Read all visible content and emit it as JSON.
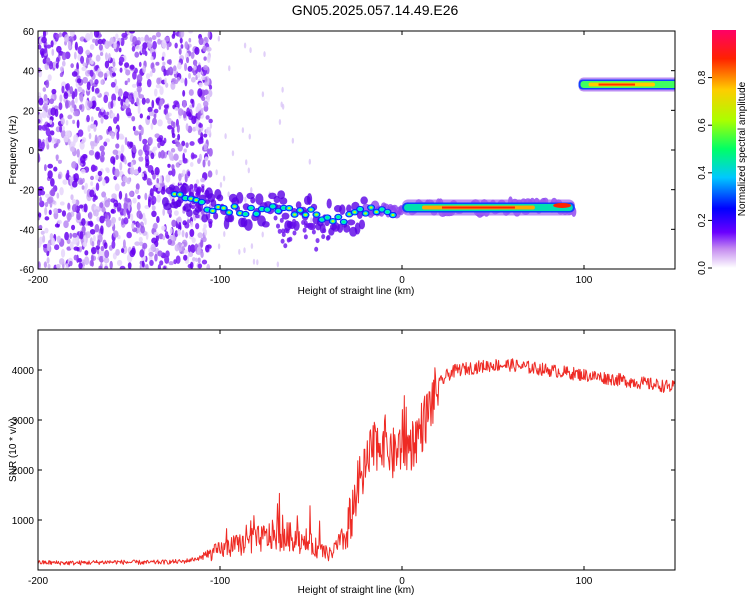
{
  "title": "GN05.2025.057.14.49.E26",
  "colors": {
    "snr_line": "#ee2a24",
    "axis": "#000000",
    "background": "#ffffff"
  },
  "chart_data": [
    {
      "type": "heatmap",
      "xlabel": "Height of straight line (km)",
      "ylabel": "Frequency (Hz)",
      "xlim": [
        -200,
        150
      ],
      "ylim": [
        -60,
        60
      ],
      "x_ticks": [
        "-200",
        "-100",
        "0",
        "100"
      ],
      "y_ticks": [
        "-60",
        "-40",
        "-20",
        "0",
        "20",
        "40",
        "60"
      ],
      "colorbar": {
        "label": "Normalized spectral amplitude",
        "range": [
          0,
          1
        ],
        "ticks": [
          "0.0",
          "0.2",
          "0.4",
          "0.6",
          "0.8"
        ]
      },
      "noise_region_km": [
        -200,
        -105
      ],
      "main_track": [
        {
          "x": -130,
          "y": -22
        },
        {
          "x": -110,
          "y": -27
        },
        {
          "x": -90,
          "y": -31
        },
        {
          "x": -70,
          "y": -30
        },
        {
          "x": -50,
          "y": -32
        },
        {
          "x": -35,
          "y": -36
        },
        {
          "x": -25,
          "y": -33
        },
        {
          "x": -15,
          "y": -29
        },
        {
          "x": -5,
          "y": -31
        },
        {
          "x": 0,
          "y": -29
        },
        {
          "x": 20,
          "y": -29
        },
        {
          "x": 50,
          "y": -29
        },
        {
          "x": 80,
          "y": -28
        },
        {
          "x": 95,
          "y": -30
        }
      ],
      "upper_track": {
        "x_start": 97,
        "x_end": 150,
        "y": 33
      }
    },
    {
      "type": "line",
      "xlabel": "Height of straight line (km)",
      "ylabel": "SNR (10 * v/v)",
      "xlim": [
        -200,
        150
      ],
      "ylim": [
        0,
        4800
      ],
      "x_ticks": [
        "-200",
        "-100",
        "0",
        "100"
      ],
      "y_ticks": [
        "1000",
        "2000",
        "3000",
        "4000"
      ],
      "series": [
        {
          "x": [
            -200,
            -180,
            -160,
            -140,
            -120,
            -110,
            -100,
            -90,
            -80,
            -70,
            -60,
            -50,
            -40,
            -30,
            -25,
            -20,
            -15,
            -10,
            -5,
            0,
            5,
            10,
            15,
            20,
            25,
            30,
            40,
            50,
            60,
            70,
            80,
            90,
            100,
            110,
            120,
            130,
            140,
            150
          ],
          "values": [
            150,
            140,
            160,
            150,
            170,
            250,
            400,
            500,
            600,
            700,
            650,
            500,
            300,
            700,
            1600,
            2000,
            2500,
            2600,
            2300,
            2500,
            2500,
            2800,
            3200,
            3700,
            3900,
            4000,
            4050,
            4100,
            4100,
            4050,
            4000,
            3950,
            3900,
            3850,
            3800,
            3750,
            3700,
            3650
          ]
        }
      ]
    }
  ]
}
